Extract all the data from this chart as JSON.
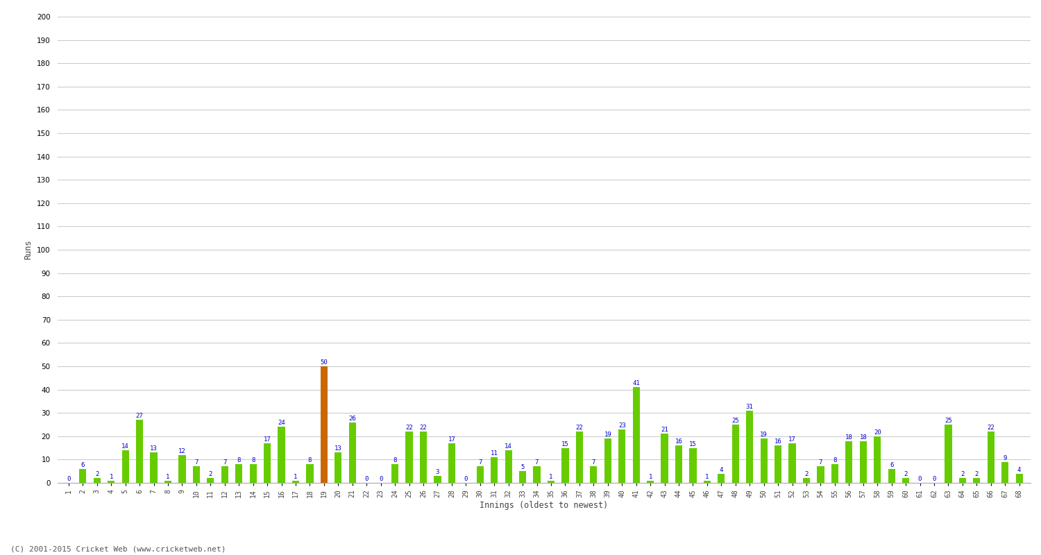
{
  "values": [
    0,
    6,
    2,
    1,
    14,
    27,
    13,
    1,
    12,
    7,
    2,
    7,
    8,
    8,
    17,
    24,
    1,
    8,
    50,
    13,
    26,
    0,
    0,
    8,
    22,
    22,
    3,
    17,
    0,
    7,
    11,
    14,
    5,
    7,
    1,
    15,
    22,
    7,
    19,
    23,
    41,
    1,
    21,
    16,
    15,
    1,
    4,
    25,
    31,
    19,
    16,
    17,
    2,
    7,
    8,
    18,
    18,
    20,
    6,
    2,
    0,
    0,
    25,
    2,
    2,
    22,
    9,
    4
  ],
  "x_labels": [
    "1",
    "2",
    "3",
    "4",
    "5",
    "6",
    "7",
    "8",
    "9",
    "10",
    "11",
    "12",
    "13",
    "14",
    "15",
    "16",
    "17",
    "18",
    "19",
    "20",
    "21",
    "22",
    "23",
    "24",
    "25",
    "26",
    "27",
    "28",
    "29",
    "30",
    "31",
    "32",
    "33",
    "34",
    "35",
    "36",
    "37",
    "38",
    "39",
    "40",
    "41",
    "42",
    "43",
    "44",
    "45",
    "46",
    "47",
    "48",
    "49",
    "50",
    "51",
    "52",
    "53",
    "54",
    "55",
    "56",
    "57",
    "58",
    "59",
    "60",
    "61",
    "62",
    "63",
    "64",
    "65",
    "66",
    "67",
    "68"
  ],
  "highlight_index": 18,
  "bar_color": "#66cc00",
  "highlight_color": "#cc6600",
  "ylabel": "Runs",
  "xlabel": "Innings (oldest to newest)",
  "ylim": [
    0,
    200
  ],
  "yticks": [
    0,
    10,
    20,
    30,
    40,
    50,
    60,
    70,
    80,
    90,
    100,
    110,
    120,
    130,
    140,
    150,
    160,
    170,
    180,
    190,
    200
  ],
  "label_color": "#0000cc",
  "grid_color": "#cccccc",
  "background_color": "#ffffff",
  "watermark": "(C) 2001-2015 Cricket Web (www.cricketweb.net)"
}
